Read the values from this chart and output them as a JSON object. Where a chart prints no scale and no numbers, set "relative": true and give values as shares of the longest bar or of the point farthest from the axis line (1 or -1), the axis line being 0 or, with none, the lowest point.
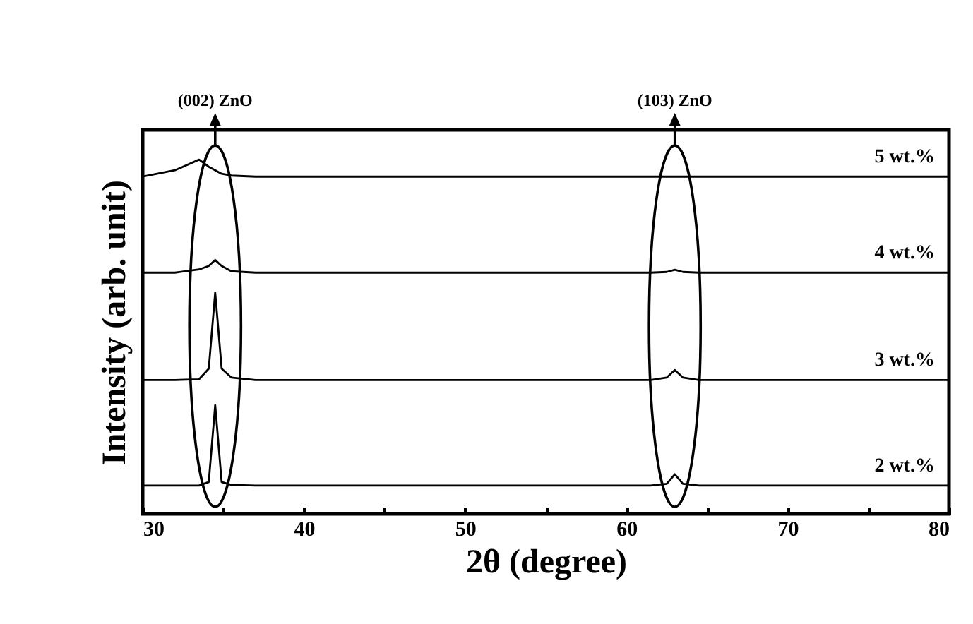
{
  "chart_data": {
    "type": "line",
    "relative": true,
    "xlabel": "2θ (degree)",
    "ylabel": "Intensity (arb. unit)",
    "xlim": [
      30,
      80
    ],
    "xticks": [
      30,
      {
        "value": 35,
        "label": null
      },
      40,
      {
        "value": 45,
        "label": null
      },
      50,
      {
        "value": 55,
        "label": null
      },
      60,
      {
        "value": 65,
        "label": null
      },
      70,
      {
        "value": 75,
        "label": null
      },
      80
    ],
    "x": [
      30,
      32,
      33.5,
      34.1,
      34.5,
      34.9,
      35.5,
      37,
      45,
      55,
      61.5,
      62.5,
      63,
      63.5,
      64.5,
      72,
      80
    ],
    "series": [
      {
        "name": "5 wt.%",
        "color": "#000000",
        "values": [
          0.952,
          0.97,
          1,
          0.98,
          0.97,
          0.96,
          0.955,
          0.952,
          0.952,
          0.952,
          0.952,
          0.952,
          0.952,
          0.952,
          0.952,
          0.952,
          0.952
        ]
      },
      {
        "name": "4 wt.%",
        "color": "#000000",
        "values": [
          0.681,
          0.681,
          0.69,
          0.7,
          0.717,
          0.7,
          0.685,
          0.681,
          0.681,
          0.681,
          0.681,
          0.683,
          0.689,
          0.683,
          0.681,
          0.681,
          0.681
        ]
      },
      {
        "name": "3 wt.%",
        "color": "#000000",
        "values": [
          0.378,
          0.378,
          0.38,
          0.41,
          0.625,
          0.41,
          0.385,
          0.378,
          0.378,
          0.378,
          0.378,
          0.385,
          0.406,
          0.385,
          0.378,
          0.378,
          0.378
        ]
      },
      {
        "name": "2 wt.%",
        "color": "#000000",
        "values": [
          0.08,
          0.08,
          0.08,
          0.09,
          0.307,
          0.09,
          0.082,
          0.08,
          0.08,
          0.08,
          0.08,
          0.085,
          0.112,
          0.085,
          0.08,
          0.08,
          0.08
        ]
      }
    ],
    "annotations": [
      "(002) ZnO",
      "(103) ZnO"
    ]
  }
}
